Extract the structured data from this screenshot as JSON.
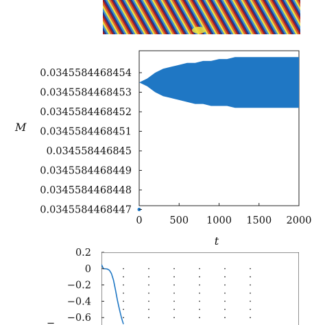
{
  "stripe_pattern": {
    "colors": [
      "#1f3a8c",
      "#3f8fd0",
      "#f0e442",
      "#e0642a",
      "#b01818"
    ]
  },
  "chart_data": [
    {
      "type": "area",
      "title": "",
      "xlabel": "t",
      "ylabel": "M",
      "xlim": [
        0,
        2000
      ],
      "x_ticks": [
        "0",
        "500",
        "1000",
        "1500",
        "2000"
      ],
      "y_ticks": [
        "0.0345584468454",
        "0.0345584468453",
        "0.0345584468452",
        "0.0345584468451",
        "0.034558446845",
        "0.0345584468449",
        "0.0345584468448",
        "0.0345584468447"
      ],
      "grid": false,
      "color": "#1f77c4",
      "band": {
        "x": [
          0,
          100,
          200,
          300,
          400,
          500,
          600,
          700,
          800,
          900,
          1000,
          1100,
          1200,
          1300,
          1400,
          1500,
          1600,
          1700,
          1800,
          1900,
          2000
        ],
        "upper": [
          0.03455844684535,
          0.03455844684537,
          0.0345584468454,
          0.03455844684542,
          0.03455844684543,
          0.03455844684544,
          0.03455844684545,
          0.03455844684545,
          0.03455844684546,
          0.03455844684546,
          0.03455844684547,
          0.03455844684547,
          0.03455844684548,
          0.03455844684548,
          0.03455844684548,
          0.03455844684548,
          0.03455844684548,
          0.03455844684548,
          0.03455844684548,
          0.03455844684548,
          0.03455844684548
        ],
        "lower": [
          0.03455844684535,
          0.03455844684533,
          0.0345584468453,
          0.03455844684528,
          0.03455844684527,
          0.03455844684526,
          0.03455844684525,
          0.03455844684524,
          0.03455844684524,
          0.03455844684523,
          0.03455844684523,
          0.03455844684523,
          0.03455844684522,
          0.03455844684522,
          0.03455844684522,
          0.03455844684522,
          0.03455844684522,
          0.03455844684522,
          0.03455844684522,
          0.03455844684522,
          0.03455844684522
        ]
      },
      "start_point": [
        0,
        0.0345584468447
      ]
    },
    {
      "type": "line",
      "title": "",
      "xlabel": "",
      "ylabel": "",
      "y_ticks": [
        "0.2",
        "0",
        "−0.2",
        "−0.4",
        "−0.6"
      ],
      "ylim": [
        -0.7,
        0.25
      ],
      "grid": true,
      "color": "#1f77c4",
      "series": [
        {
          "x": [
            0,
            0.01,
            0.02,
            0.03,
            0.04,
            0.05,
            0.06,
            0.07,
            0.08,
            0.09,
            0.1,
            0.11
          ],
          "values": [
            0.05,
            0.0,
            -0.002,
            -0.005,
            -0.02,
            -0.06,
            -0.14,
            -0.26,
            -0.39,
            -0.5,
            -0.6,
            -0.68
          ]
        }
      ]
    }
  ]
}
